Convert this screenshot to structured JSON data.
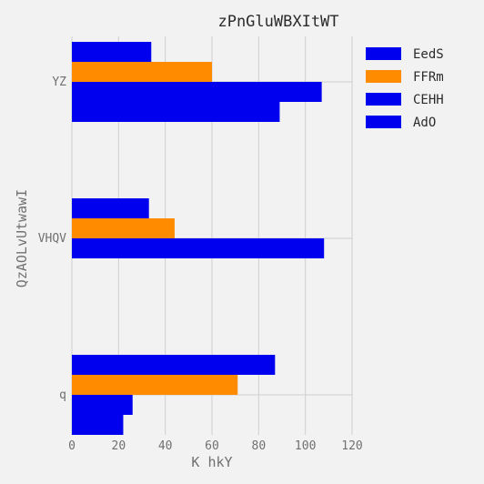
{
  "chart_data": {
    "type": "bar",
    "orientation": "horizontal",
    "title": "zPnGluWBXItWT",
    "xlabel": "K hkY",
    "ylabel": "QzAOLvUtwawI",
    "categories": [
      "q",
      "VHQV",
      "YZ"
    ],
    "xlim": [
      0,
      120
    ],
    "xticks": [
      0,
      20,
      40,
      60,
      80,
      100,
      120
    ],
    "grid": true,
    "legend_position": "top-right",
    "series": [
      {
        "name": "EedS",
        "color": "#0000ee",
        "values": [
          87,
          33,
          34
        ]
      },
      {
        "name": "FFRm",
        "color": "#ff8c00",
        "values": [
          71,
          44,
          60
        ]
      },
      {
        "name": "CEHH",
        "color": "#0000ee",
        "values": [
          26,
          108,
          107
        ]
      },
      {
        "name": "AdO",
        "color": "#0000ee",
        "values": [
          22,
          null,
          89
        ]
      }
    ]
  }
}
